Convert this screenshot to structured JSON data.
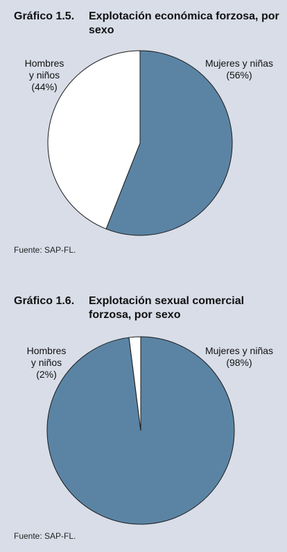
{
  "chart_data": [
    {
      "type": "pie",
      "figure_number": "Gráfico 1.5.",
      "title": "Explotación económica forzosa, por sexo",
      "source": "Fuente: SAP-FL.",
      "slices": [
        {
          "label_lines": [
            "Mujeres y niñas",
            "(56%)"
          ],
          "value": 56,
          "color": "#5b84a4"
        },
        {
          "label_lines": [
            "Hombres",
            "y niños",
            "(44%)"
          ],
          "value": 44,
          "color": "#ffffff"
        }
      ]
    },
    {
      "type": "pie",
      "figure_number": "Gráfico 1.6.",
      "title": "Explotación sexual comercial forzosa, por sexo",
      "source": "Fuente: SAP-FL.",
      "slices": [
        {
          "label_lines": [
            "Mujeres y niñas",
            "(98%)"
          ],
          "value": 98,
          "color": "#5b84a4"
        },
        {
          "label_lines": [
            "Hombres",
            "y niños",
            "(2%)"
          ],
          "value": 2,
          "color": "#ffffff"
        }
      ]
    }
  ]
}
